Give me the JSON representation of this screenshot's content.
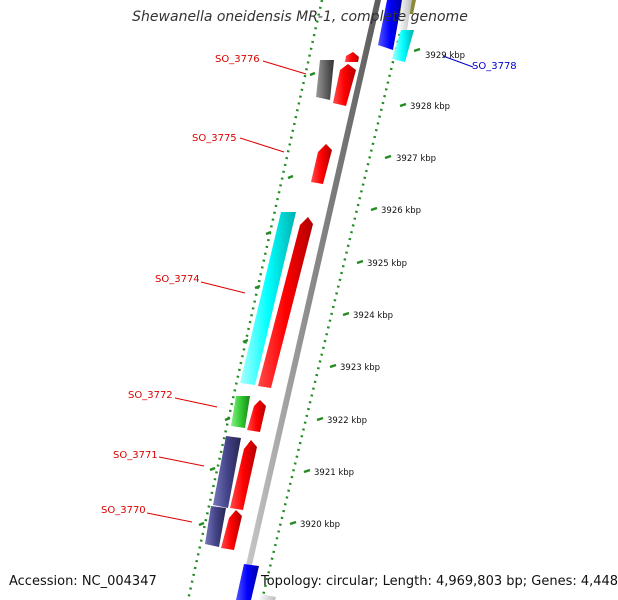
{
  "title": "Shewanella oneidensis MR-1, complete genome",
  "footer": {
    "accession": "Accession: NC_004347",
    "summary": "Topology: circular; Length: 4,969,803 bp; Genes: 4,448"
  },
  "ticks": [
    "3929 kbp",
    "3928 kbp",
    "3927 kbp",
    "3926 kbp",
    "3925 kbp",
    "3924 kbp",
    "3923 kbp",
    "3922 kbp",
    "3921 kbp",
    "3920 kbp"
  ],
  "genes": [
    "SO_3776",
    "SO_3775",
    "SO_3774",
    "SO_3772",
    "SO_3771",
    "SO_3770",
    "SO_3778"
  ],
  "colors": {
    "forward_cds": "#ff0000",
    "reverse_cds": "#00ffff",
    "gene_gray": "#666666",
    "gene_purple": "#44448a",
    "gene_green": "#33cc33",
    "gene_blue": "#0000ff",
    "backbone": "#9a9a9a",
    "dots": "#228b22",
    "label_red": "#dd0000",
    "label_blue": "#0000cc"
  }
}
